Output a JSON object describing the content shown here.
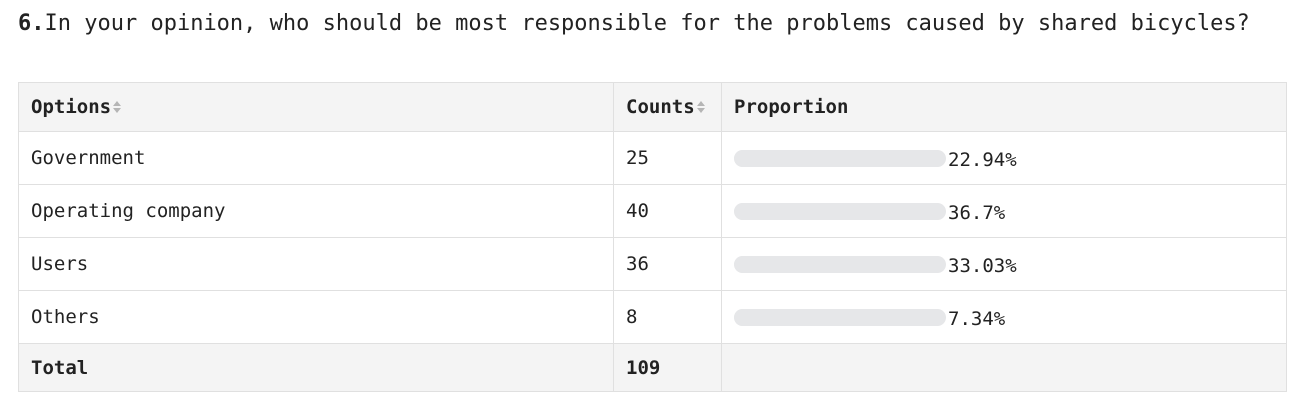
{
  "question": {
    "number": "6.",
    "text": "In your opinion, who should be most responsible for the problems caused by shared bicycles?"
  },
  "table": {
    "headers": {
      "options": "Options",
      "counts": "Counts",
      "proportion": "Proportion"
    },
    "rows": [
      {
        "option": "Government",
        "count": "25",
        "percent": "22.94%",
        "fraction": 0.2294
      },
      {
        "option": "Operating company",
        "count": "40",
        "percent": "36.7%",
        "fraction": 0.367
      },
      {
        "option": "Users",
        "count": "36",
        "percent": "33.03%",
        "fraction": 0.3303
      },
      {
        "option": "Others",
        "count": "8",
        "percent": "7.34%",
        "fraction": 0.0734
      }
    ],
    "total": {
      "label": "Total",
      "count": "109"
    }
  },
  "colors": {
    "bar_track": "#e6e7e9",
    "bar_fill": "#e6e7e9",
    "header_bg": "#f4f4f4",
    "border": "#e0e0e0"
  },
  "icons": {
    "sort": "sort-icon"
  }
}
